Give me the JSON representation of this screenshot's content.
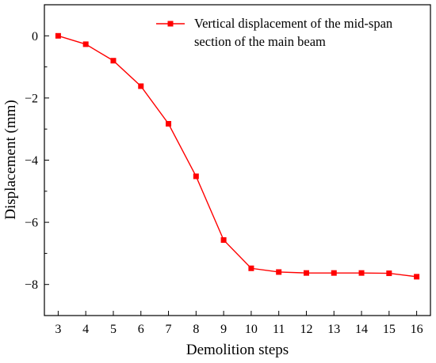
{
  "chart_data": {
    "type": "line",
    "xlabel": "Demolition steps",
    "ylabel": "Displacement (mm)",
    "xlim": [
      2.5,
      16.5
    ],
    "ylim": [
      -9,
      1
    ],
    "x_ticks": [
      3,
      4,
      5,
      6,
      7,
      8,
      9,
      10,
      11,
      12,
      13,
      14,
      15,
      16
    ],
    "y_ticks": [
      0,
      -2,
      -4,
      -6,
      -8
    ],
    "y_tick_labels": [
      "0",
      "−2",
      "−4",
      "−6",
      "−8"
    ],
    "grid": false,
    "legend_position": "top-right",
    "series": [
      {
        "name_lines": [
          "Vertical displacement of the mid-span",
          "section of the main beam"
        ],
        "color": "#ff0000",
        "marker": "square",
        "x": [
          3,
          4,
          5,
          6,
          7,
          8,
          9,
          10,
          11,
          12,
          13,
          14,
          15,
          16
        ],
        "y": [
          0,
          -0.27,
          -0.8,
          -1.62,
          -2.83,
          -4.52,
          -6.57,
          -7.48,
          -7.6,
          -7.63,
          -7.63,
          -7.63,
          -7.64,
          -7.75
        ]
      }
    ]
  }
}
